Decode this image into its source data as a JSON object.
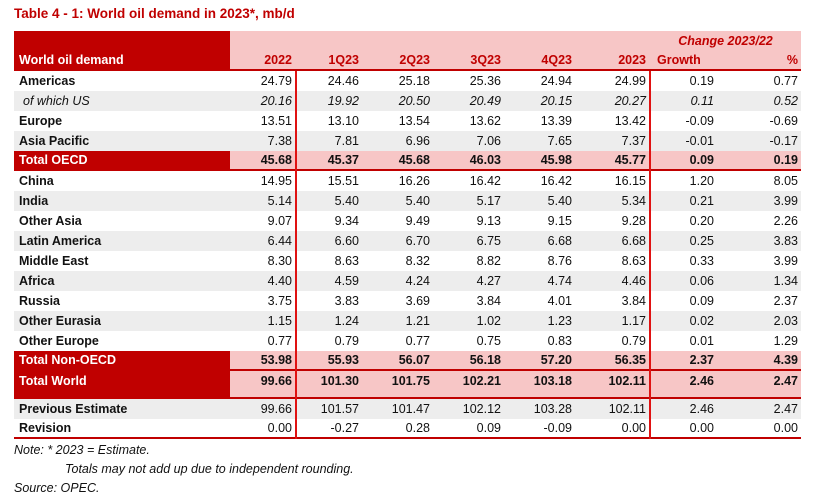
{
  "title": "Table 4 - 1: World oil demand in 2023*, mb/d",
  "colors": {
    "dark_red": "#C00000",
    "header_pink": "#F7C6C6",
    "row_shade_gray": "#EDEDED",
    "divider_red": "#E01212"
  },
  "table": {
    "label_header": "World oil demand",
    "change_header": "Change 2023/22",
    "columns": [
      "2022",
      "1Q23",
      "2Q23",
      "3Q23",
      "4Q23",
      "2023"
    ],
    "change_columns": [
      "Growth",
      "%"
    ],
    "rows": [
      {
        "label": "Americas",
        "kind": "region",
        "values": [
          "24.79",
          "24.46",
          "25.18",
          "25.36",
          "24.94",
          "24.99",
          "0.19",
          "0.77"
        ]
      },
      {
        "label": "of which US",
        "kind": "sub",
        "values": [
          "20.16",
          "19.92",
          "20.50",
          "20.49",
          "20.15",
          "20.27",
          "0.11",
          "0.52"
        ]
      },
      {
        "label": "Europe",
        "kind": "region",
        "values": [
          "13.51",
          "13.10",
          "13.54",
          "13.62",
          "13.39",
          "13.42",
          "-0.09",
          "-0.69"
        ]
      },
      {
        "label": "Asia Pacific",
        "kind": "region",
        "values": [
          "7.38",
          "7.81",
          "6.96",
          "7.06",
          "7.65",
          "7.37",
          "-0.01",
          "-0.17"
        ]
      },
      {
        "label": "Total OECD",
        "kind": "total",
        "values": [
          "45.68",
          "45.37",
          "45.68",
          "46.03",
          "45.98",
          "45.77",
          "0.09",
          "0.19"
        ]
      },
      {
        "label": "China",
        "kind": "region",
        "values": [
          "14.95",
          "15.51",
          "16.26",
          "16.42",
          "16.42",
          "16.15",
          "1.20",
          "8.05"
        ]
      },
      {
        "label": "India",
        "kind": "region",
        "values": [
          "5.14",
          "5.40",
          "5.40",
          "5.17",
          "5.40",
          "5.34",
          "0.21",
          "3.99"
        ]
      },
      {
        "label": "Other Asia",
        "kind": "region",
        "values": [
          "9.07",
          "9.34",
          "9.49",
          "9.13",
          "9.15",
          "9.28",
          "0.20",
          "2.26"
        ]
      },
      {
        "label": "Latin America",
        "kind": "region",
        "values": [
          "6.44",
          "6.60",
          "6.70",
          "6.75",
          "6.68",
          "6.68",
          "0.25",
          "3.83"
        ]
      },
      {
        "label": "Middle East",
        "kind": "region",
        "values": [
          "8.30",
          "8.63",
          "8.32",
          "8.82",
          "8.76",
          "8.63",
          "0.33",
          "3.99"
        ]
      },
      {
        "label": "Africa",
        "kind": "region",
        "values": [
          "4.40",
          "4.59",
          "4.24",
          "4.27",
          "4.74",
          "4.46",
          "0.06",
          "1.34"
        ]
      },
      {
        "label": "Russia",
        "kind": "region",
        "values": [
          "3.75",
          "3.83",
          "3.69",
          "3.84",
          "4.01",
          "3.84",
          "0.09",
          "2.37"
        ]
      },
      {
        "label": "Other Eurasia",
        "kind": "region",
        "values": [
          "1.15",
          "1.24",
          "1.21",
          "1.02",
          "1.23",
          "1.17",
          "0.02",
          "2.03"
        ]
      },
      {
        "label": "Other Europe",
        "kind": "region",
        "values": [
          "0.77",
          "0.79",
          "0.77",
          "0.75",
          "0.83",
          "0.79",
          "0.01",
          "1.29"
        ]
      },
      {
        "label": "Total Non-OECD",
        "kind": "total",
        "values": [
          "53.98",
          "55.93",
          "56.07",
          "56.18",
          "57.20",
          "56.35",
          "2.37",
          "4.39"
        ]
      },
      {
        "label": "Total World",
        "kind": "total",
        "values": [
          "99.66",
          "101.30",
          "101.75",
          "102.21",
          "103.18",
          "102.11",
          "2.46",
          "2.47"
        ]
      }
    ],
    "footer_rows": [
      {
        "label": "Previous Estimate",
        "values": [
          "99.66",
          "101.57",
          "101.47",
          "102.12",
          "103.28",
          "102.11",
          "2.46",
          "2.47"
        ]
      },
      {
        "label": "Revision",
        "values": [
          "0.00",
          "-0.27",
          "0.28",
          "0.09",
          "-0.09",
          "0.00",
          "0.00",
          "0.00"
        ]
      }
    ]
  },
  "notes": {
    "line1": "Note: * 2023 = Estimate.",
    "line2": "Totals may not add up due to independent rounding.",
    "source": "Source: OPEC."
  }
}
